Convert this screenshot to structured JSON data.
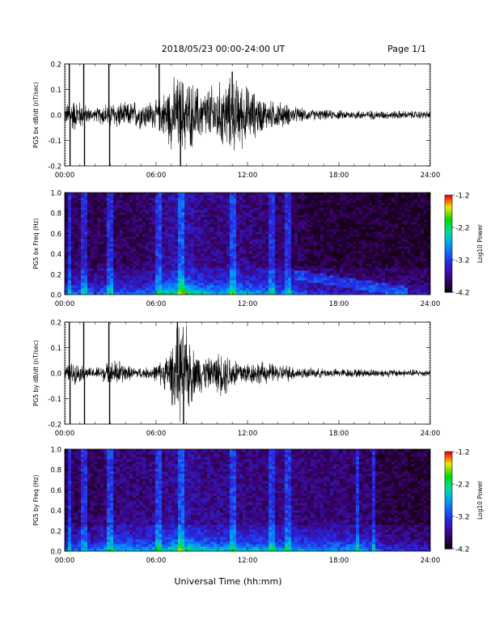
{
  "header": {
    "title": "2018/05/23  00:00-24:00 UT",
    "page_label": "Page 1/1"
  },
  "xlabel": "Universal Time (hh:mm)",
  "chart_data": [
    {
      "type": "line",
      "ylabel": "PG5 bx dB/dt (nT/sec)",
      "xlim": [
        "00:00",
        "24:00"
      ],
      "ylim": [
        -0.2,
        0.2
      ],
      "xticks": [
        "00:00",
        "06:00",
        "12:00",
        "18:00",
        "24:00"
      ],
      "yticks": [
        "-0.2",
        "-0.1",
        "0.0",
        "0.1",
        "0.2"
      ],
      "envelope_hours": [
        0,
        0.5,
        1,
        1.5,
        2,
        2.5,
        3,
        3.5,
        4,
        4.5,
        5,
        5.5,
        6,
        6.5,
        7,
        7.5,
        8,
        8.5,
        9,
        9.5,
        10,
        10.5,
        11,
        11.5,
        12,
        12.5,
        13,
        13.5,
        14,
        14.5,
        15,
        15.5,
        16,
        17,
        18,
        19,
        20,
        21,
        22,
        23,
        24
      ],
      "envelope_amplitude": [
        0.03,
        0.06,
        0.05,
        0.03,
        0.02,
        0.04,
        0.05,
        0.05,
        0.04,
        0.05,
        0.05,
        0.05,
        0.05,
        0.08,
        0.12,
        0.14,
        0.13,
        0.11,
        0.09,
        0.1,
        0.11,
        0.12,
        0.13,
        0.12,
        0.1,
        0.08,
        0.06,
        0.05,
        0.05,
        0.04,
        0.03,
        0.025,
        0.02,
        0.018,
        0.016,
        0.016,
        0.016,
        0.015,
        0.015,
        0.014,
        0.014
      ],
      "spikes": [
        {
          "hour": 0.3,
          "value": 0.2
        },
        {
          "hour": 0.35,
          "value": -0.2
        },
        {
          "hour": 1.25,
          "value": 0.2
        },
        {
          "hour": 1.3,
          "value": -0.2
        },
        {
          "hour": 2.9,
          "value": 0.2
        },
        {
          "hour": 2.95,
          "value": -0.2
        },
        {
          "hour": 6.2,
          "value": 0.2
        },
        {
          "hour": 7.6,
          "value": -0.2
        },
        {
          "hour": 11.0,
          "value": 0.17
        }
      ]
    },
    {
      "type": "heatmap",
      "ylabel": "PG5 bx Freq (Hz)",
      "xlim": [
        "00:00",
        "24:00"
      ],
      "ylim": [
        0.0,
        1.0
      ],
      "xticks": [
        "00:00",
        "06:00",
        "12:00",
        "18:00",
        "24:00"
      ],
      "yticks": [
        "0.0",
        "0.2",
        "0.4",
        "0.6",
        "0.8",
        "1.0"
      ],
      "colorbar": {
        "label": "Log10 Power",
        "ticks": [
          "-1.2",
          "-2.2",
          "-3.2",
          "-4.2"
        ],
        "range": [
          -4.2,
          -1.2
        ]
      },
      "intensity_hours": [
        0,
        1,
        2,
        3,
        4,
        5,
        6,
        7,
        8,
        9,
        10,
        11,
        12,
        13,
        14,
        15,
        16,
        17,
        18,
        19,
        20,
        21,
        22,
        23,
        24
      ],
      "intensity": [
        0.45,
        0.5,
        0.4,
        0.5,
        0.45,
        0.45,
        0.55,
        0.75,
        0.8,
        0.65,
        0.6,
        0.65,
        0.6,
        0.55,
        0.5,
        0.5,
        0.35,
        0.32,
        0.3,
        0.28,
        0.28,
        0.27,
        0.27,
        0.26,
        0.25
      ],
      "vertical_lines_hours": [
        0.3,
        1.3,
        2.9,
        6.2,
        7.6,
        11.0,
        13.6,
        14.7
      ],
      "band": {
        "start_hour": 15.0,
        "end_hour": 22.5,
        "freq_start": 0.2,
        "freq_end": 0.03
      }
    },
    {
      "type": "line",
      "ylabel": "PG5 by dB/dt (nT/sec)",
      "xlim": [
        "00:00",
        "24:00"
      ],
      "ylim": [
        -0.2,
        0.2
      ],
      "xticks": [
        "00:00",
        "06:00",
        "12:00",
        "18:00",
        "24:00"
      ],
      "yticks": [
        "-0.2",
        "-0.1",
        "0.0",
        "0.1",
        "0.2"
      ],
      "envelope_hours": [
        0,
        0.5,
        1,
        1.5,
        2,
        2.5,
        3,
        3.5,
        4,
        4.5,
        5,
        5.5,
        6,
        6.5,
        7,
        7.5,
        8,
        8.5,
        9,
        9.5,
        10,
        10.5,
        11,
        11.5,
        12,
        12.5,
        13,
        13.5,
        14,
        14.5,
        15,
        15.5,
        16,
        17,
        18,
        19,
        20,
        21,
        22,
        23,
        24
      ],
      "envelope_amplitude": [
        0.02,
        0.04,
        0.03,
        0.02,
        0.02,
        0.03,
        0.04,
        0.05,
        0.03,
        0.02,
        0.02,
        0.02,
        0.03,
        0.05,
        0.1,
        0.17,
        0.16,
        0.08,
        0.07,
        0.05,
        0.07,
        0.08,
        0.06,
        0.05,
        0.04,
        0.04,
        0.04,
        0.035,
        0.03,
        0.03,
        0.025,
        0.02,
        0.018,
        0.016,
        0.015,
        0.015,
        0.014,
        0.014,
        0.013,
        0.013,
        0.012
      ],
      "spikes": [
        {
          "hour": 0.3,
          "value": 0.2
        },
        {
          "hour": 0.35,
          "value": -0.2
        },
        {
          "hour": 1.25,
          "value": 0.2
        },
        {
          "hour": 1.3,
          "value": -0.2
        },
        {
          "hour": 2.9,
          "value": 0.2
        },
        {
          "hour": 2.95,
          "value": -0.2
        },
        {
          "hour": 7.4,
          "value": 0.2
        },
        {
          "hour": 7.8,
          "value": -0.2
        }
      ]
    },
    {
      "type": "heatmap",
      "ylabel": "PG5 by Freq (Hz)",
      "xlim": [
        "00:00",
        "24:00"
      ],
      "ylim": [
        0.0,
        1.0
      ],
      "xticks": [
        "00:00",
        "06:00",
        "12:00",
        "18:00",
        "24:00"
      ],
      "yticks": [
        "0.0",
        "0.2",
        "0.4",
        "0.6",
        "0.8",
        "1.0"
      ],
      "colorbar": {
        "label": "Log10 Power",
        "ticks": [
          "-1.2",
          "-2.2",
          "-3.2",
          "-4.2"
        ],
        "range": [
          -4.2,
          -1.2
        ]
      },
      "intensity_hours": [
        0,
        1,
        2,
        3,
        4,
        5,
        6,
        7,
        8,
        9,
        10,
        11,
        12,
        13,
        14,
        15,
        16,
        17,
        18,
        19,
        20,
        21,
        22,
        23,
        24
      ],
      "intensity": [
        0.45,
        0.5,
        0.45,
        0.6,
        0.6,
        0.58,
        0.6,
        0.7,
        0.75,
        0.68,
        0.62,
        0.64,
        0.62,
        0.6,
        0.58,
        0.58,
        0.56,
        0.55,
        0.55,
        0.55,
        0.52,
        0.35,
        0.35,
        0.3,
        0.3
      ],
      "vertical_lines_hours": [
        0.3,
        1.3,
        2.9,
        6.2,
        7.6,
        11.0,
        13.6,
        14.7,
        19.2,
        20.3
      ],
      "band": null
    }
  ]
}
